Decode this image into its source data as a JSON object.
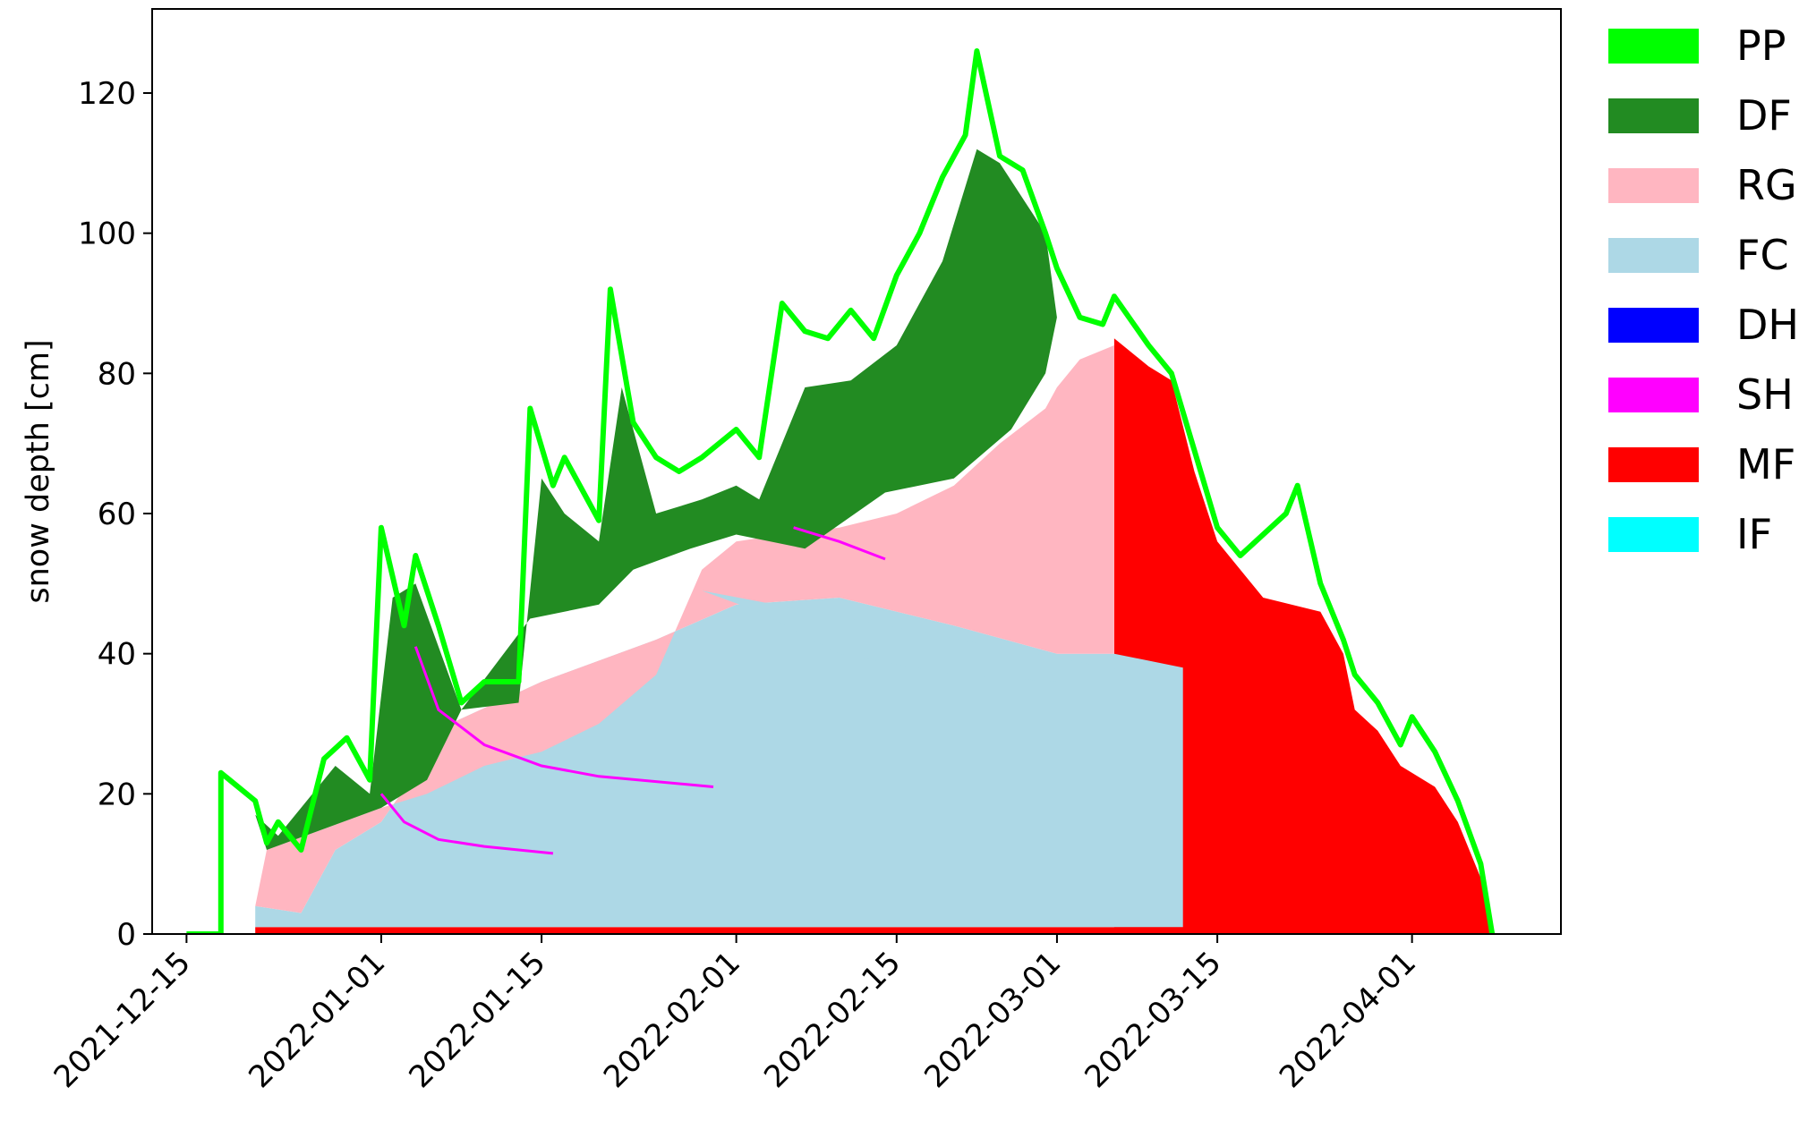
{
  "chart_data": {
    "type": "area",
    "subtype": "stacked-layer-profile",
    "ylabel": "snow depth [cm]",
    "xlabel": "",
    "ylim": [
      0,
      132
    ],
    "yticks": [
      0,
      20,
      40,
      60,
      80,
      100,
      120
    ],
    "xlim": [
      "2021-12-12",
      "2022-04-14"
    ],
    "xticks": [
      "2021-12-15",
      "2022-01-01",
      "2022-01-15",
      "2022-02-01",
      "2022-02-15",
      "2022-03-01",
      "2022-03-15",
      "2022-04-01"
    ],
    "legend_position": "right",
    "grid": false,
    "legend": [
      {
        "name": "PP",
        "color": "#00ff00"
      },
      {
        "name": "DF",
        "color": "#228b22"
      },
      {
        "name": "RG",
        "color": "#ffb6c1"
      },
      {
        "name": "FC",
        "color": "#add8e6"
      },
      {
        "name": "DH",
        "color": "#0000ff"
      },
      {
        "name": "SH",
        "color": "#ff00ff"
      },
      {
        "name": "MF",
        "color": "#ff0000"
      },
      {
        "name": "IF",
        "color": "#00ffff"
      }
    ],
    "snow_depth_outline": [
      [
        "2021-12-15",
        0
      ],
      [
        "2021-12-18",
        0
      ],
      [
        "2021-12-18",
        23
      ],
      [
        "2021-12-21",
        19
      ],
      [
        "2021-12-22",
        13
      ],
      [
        "2021-12-23",
        16
      ],
      [
        "2021-12-25",
        12
      ],
      [
        "2021-12-27",
        25
      ],
      [
        "2021-12-29",
        28
      ],
      [
        "2021-12-31",
        22
      ],
      [
        "2022-01-01",
        58
      ],
      [
        "2022-01-03",
        44
      ],
      [
        "2022-01-04",
        54
      ],
      [
        "2022-01-06",
        44
      ],
      [
        "2022-01-08",
        33
      ],
      [
        "2022-01-10",
        36
      ],
      [
        "2022-01-13",
        36
      ],
      [
        "2022-01-14",
        75
      ],
      [
        "2022-01-16",
        64
      ],
      [
        "2022-01-17",
        68
      ],
      [
        "2022-01-20",
        59
      ],
      [
        "2022-01-21",
        92
      ],
      [
        "2022-01-23",
        73
      ],
      [
        "2022-01-25",
        68
      ],
      [
        "2022-01-27",
        66
      ],
      [
        "2022-01-29",
        68
      ],
      [
        "2022-02-01",
        72
      ],
      [
        "2022-02-03",
        68
      ],
      [
        "2022-02-05",
        90
      ],
      [
        "2022-02-07",
        86
      ],
      [
        "2022-02-09",
        85
      ],
      [
        "2022-02-11",
        89
      ],
      [
        "2022-02-13",
        85
      ],
      [
        "2022-02-15",
        94
      ],
      [
        "2022-02-17",
        100
      ],
      [
        "2022-02-19",
        108
      ],
      [
        "2022-02-21",
        114
      ],
      [
        "2022-02-22",
        126
      ],
      [
        "2022-02-24",
        111
      ],
      [
        "2022-02-26",
        109
      ],
      [
        "2022-02-28",
        100
      ],
      [
        "2022-03-01",
        95
      ],
      [
        "2022-03-03",
        88
      ],
      [
        "2022-03-05",
        87
      ],
      [
        "2022-03-06",
        91
      ],
      [
        "2022-03-09",
        84
      ],
      [
        "2022-03-11",
        80
      ],
      [
        "2022-03-13",
        69
      ],
      [
        "2022-03-15",
        58
      ],
      [
        "2022-03-17",
        54
      ],
      [
        "2022-03-19",
        57
      ],
      [
        "2022-03-21",
        60
      ],
      [
        "2022-03-22",
        64
      ],
      [
        "2022-03-24",
        50
      ],
      [
        "2022-03-26",
        42
      ],
      [
        "2022-03-27",
        37
      ],
      [
        "2022-03-29",
        33
      ],
      [
        "2022-03-31",
        27
      ],
      [
        "2022-04-01",
        31
      ],
      [
        "2022-04-03",
        26
      ],
      [
        "2022-04-05",
        19
      ],
      [
        "2022-04-07",
        10
      ],
      [
        "2022-04-08",
        0
      ]
    ],
    "layers": [
      {
        "grain": "MF",
        "points": [
          [
            "2021-12-21",
            0
          ],
          [
            "2021-12-21",
            1
          ],
          [
            "2022-03-06",
            1
          ],
          [
            "2022-03-06",
            85
          ],
          [
            "2022-03-09",
            81
          ],
          [
            "2022-03-11",
            79
          ],
          [
            "2022-03-13",
            66
          ],
          [
            "2022-03-15",
            56
          ],
          [
            "2022-03-19",
            48
          ],
          [
            "2022-03-24",
            46
          ],
          [
            "2022-03-26",
            40
          ],
          [
            "2022-03-27",
            32
          ],
          [
            "2022-03-29",
            29
          ],
          [
            "2022-03-31",
            24
          ],
          [
            "2022-04-03",
            21
          ],
          [
            "2022-04-05",
            16
          ],
          [
            "2022-04-07",
            8
          ],
          [
            "2022-04-08",
            0
          ]
        ]
      },
      {
        "grain": "FC",
        "points": [
          [
            "2021-12-21",
            1
          ],
          [
            "2021-12-21",
            4
          ],
          [
            "2021-12-25",
            3
          ],
          [
            "2021-12-28",
            12
          ],
          [
            "2022-01-01",
            16
          ],
          [
            "2022-01-07",
            30
          ],
          [
            "2022-01-15",
            36
          ],
          [
            "2022-01-25",
            42
          ],
          [
            "2022-02-01",
            47
          ],
          [
            "2022-02-10",
            48
          ],
          [
            "2022-02-20",
            44
          ],
          [
            "2022-03-01",
            40
          ],
          [
            "2022-03-06",
            40
          ],
          [
            "2022-03-12",
            38
          ],
          [
            "2022-03-12",
            1
          ]
        ]
      },
      {
        "grain": "RG",
        "points": [
          [
            "2021-12-21",
            4
          ],
          [
            "2021-12-22",
            12
          ],
          [
            "2021-12-27",
            15
          ],
          [
            "2022-01-01",
            18
          ],
          [
            "2022-01-05",
            20
          ],
          [
            "2022-01-10",
            24
          ],
          [
            "2022-01-15",
            26
          ],
          [
            "2022-01-20",
            30
          ],
          [
            "2022-01-25",
            37
          ],
          [
            "2022-01-29",
            52
          ],
          [
            "2022-02-01",
            56
          ],
          [
            "2022-02-05",
            57
          ],
          [
            "2022-02-10",
            58
          ],
          [
            "2022-02-15",
            60
          ],
          [
            "2022-02-20",
            64
          ],
          [
            "2022-02-24",
            70
          ],
          [
            "2022-02-28",
            75
          ],
          [
            "2022-03-01",
            78
          ],
          [
            "2022-03-03",
            82
          ],
          [
            "2022-03-06",
            84
          ],
          [
            "2022-03-06",
            40
          ],
          [
            "2022-03-01",
            40
          ],
          [
            "2022-02-20",
            44
          ],
          [
            "2022-02-10",
            48
          ],
          [
            "2022-02-01",
            47
          ],
          [
            "2022-01-25",
            42
          ],
          [
            "2022-01-15",
            36
          ],
          [
            "2022-01-07",
            30
          ],
          [
            "2022-01-01",
            16
          ],
          [
            "2021-12-28",
            12
          ],
          [
            "2021-12-25",
            3
          ],
          [
            "2021-12-21",
            4
          ]
        ]
      },
      {
        "grain": "DF",
        "points": [
          [
            "2021-12-19",
            0
          ],
          [
            "2021-12-19",
            17
          ],
          [
            "2021-12-21",
            17
          ],
          [
            "2021-12-22",
            12
          ],
          [
            "2022-01-01",
            18
          ],
          [
            "2022-01-05",
            22
          ],
          [
            "2022-01-08",
            32
          ],
          [
            "2022-01-14",
            45
          ],
          [
            "2022-01-20",
            47
          ],
          [
            "2022-01-23",
            52
          ],
          [
            "2022-01-28",
            55
          ],
          [
            "2022-02-01",
            57
          ],
          [
            "2022-02-07",
            55
          ],
          [
            "2022-02-14",
            63
          ],
          [
            "2022-02-20",
            65
          ],
          [
            "2022-02-25",
            72
          ],
          [
            "2022-02-28",
            80
          ],
          [
            "2022-03-01",
            88
          ],
          [
            "2022-02-28",
            100
          ],
          [
            "2022-02-24",
            110
          ],
          [
            "2022-02-22",
            112
          ],
          [
            "2022-02-19",
            96
          ],
          [
            "2022-02-15",
            84
          ],
          [
            "2022-02-11",
            79
          ],
          [
            "2022-02-07",
            78
          ],
          [
            "2022-02-03",
            62
          ],
          [
            "2022-02-01",
            64
          ],
          [
            "2022-01-29",
            62
          ],
          [
            "2022-01-25",
            60
          ],
          [
            "2022-01-22",
            78
          ],
          [
            "2022-01-20",
            56
          ],
          [
            "2022-01-17",
            60
          ],
          [
            "2022-01-15",
            65
          ],
          [
            "2022-01-13",
            33
          ],
          [
            "2022-01-08",
            32
          ],
          [
            "2022-01-04",
            50
          ],
          [
            "2022-01-02",
            48
          ],
          [
            "2021-12-31",
            20
          ],
          [
            "2021-12-28",
            24
          ],
          [
            "2021-12-23",
            14
          ],
          [
            "2021-12-21",
            17
          ],
          [
            "2021-12-19",
            17
          ]
        ]
      },
      {
        "grain": "SH",
        "points": [
          [
            "2022-01-04",
            41
          ],
          [
            "2022-01-06",
            32
          ],
          [
            "2022-01-10",
            27
          ],
          [
            "2022-01-15",
            24
          ],
          [
            "2022-01-20",
            22.5
          ],
          [
            "2022-01-30",
            21
          ]
        ]
      },
      {
        "grain": "SH",
        "points": [
          [
            "2022-01-01",
            20
          ],
          [
            "2022-01-03",
            16
          ],
          [
            "2022-01-06",
            13.5
          ],
          [
            "2022-01-10",
            12.5
          ],
          [
            "2022-01-16",
            11.5
          ]
        ]
      },
      {
        "grain": "SH",
        "points": [
          [
            "2022-02-06",
            58
          ],
          [
            "2022-02-10",
            56
          ],
          [
            "2022-02-14",
            53.5
          ]
        ]
      },
      {
        "grain": "FC",
        "points": [
          [
            "2022-01-29",
            49
          ],
          [
            "2022-02-03",
            46
          ],
          [
            "2022-02-10",
            40
          ],
          [
            "2022-02-20",
            37
          ],
          [
            "2022-03-01",
            36
          ],
          [
            "2022-03-12",
            36
          ]
        ]
      }
    ]
  }
}
